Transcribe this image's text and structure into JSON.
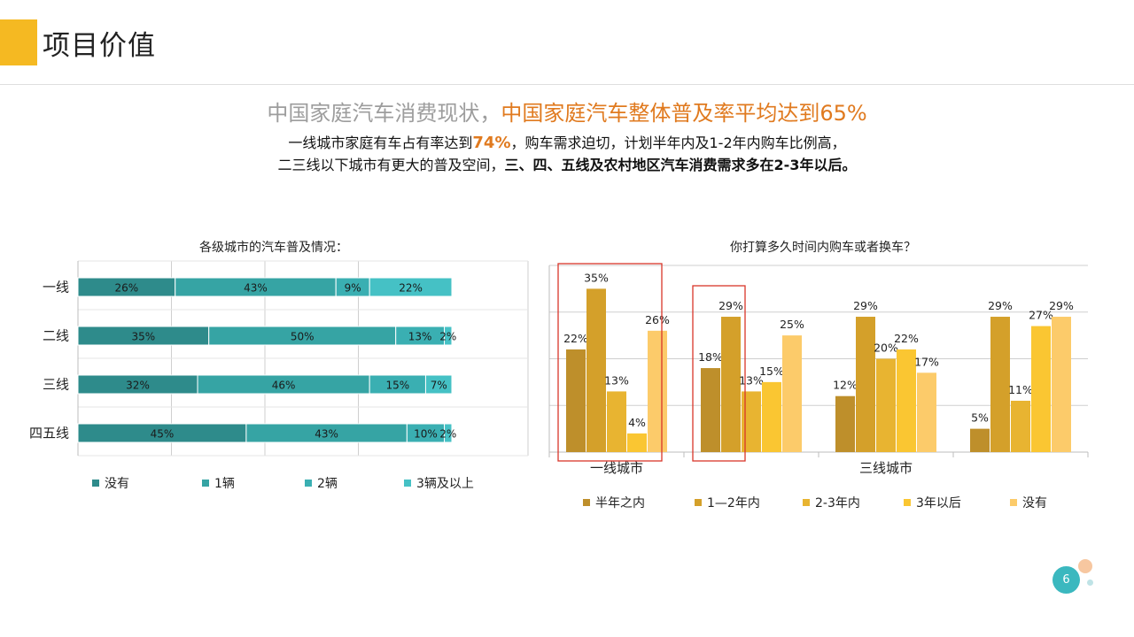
{
  "page": {
    "title": "项目价值",
    "headline_gray": "中国家庭汽车消费现状，",
    "headline_orange": "中国家庭汽车整体普及率平均达到65%",
    "sub1_a": "一线城市家庭有车占有率达到",
    "sub1_num": "74%",
    "sub1_b": "，购车需求迫切，计划半年内及1-2年内购车比例高，",
    "sub2_a": "二三线以下城市有更大的普及空间，",
    "sub2_b": "三、四、五线及农村地区汽车消费需求多在2-3年以后。",
    "page_number": "6"
  },
  "chart_data": [
    {
      "type": "bar",
      "orientation": "horizontal",
      "stacked": true,
      "title": "各级城市的汽车普及情况：",
      "categories": [
        "一线",
        "二线",
        "三线",
        "四五线"
      ],
      "series": [
        {
          "name": "没有",
          "values": [
            26,
            35,
            32,
            45
          ],
          "color": "#2E8B8B"
        },
        {
          "name": "1辆",
          "values": [
            43,
            50,
            46,
            43
          ],
          "color": "#36A4A4"
        },
        {
          "name": "2辆",
          "values": [
            9,
            13,
            15,
            10
          ],
          "color": "#3AAFB2"
        },
        {
          "name": "3辆及以上",
          "values": [
            22,
            2,
            7,
            2
          ],
          "color": "#45C1C5"
        }
      ],
      "data_labels": [
        [
          "26%",
          "35%",
          "32%",
          "45%"
        ],
        [
          "43%",
          "50%",
          "46%",
          "43%"
        ],
        [
          "9%",
          "13%",
          "15%",
          "10%"
        ],
        [
          "22%",
          "2%",
          "7%",
          "2%"
        ]
      ],
      "legend_position": "bottom",
      "grid": true
    },
    {
      "type": "bar",
      "title": "你打算多久时间内购车或者换车？",
      "categories": [
        "一线城市",
        "",
        "三线城市",
        ""
      ],
      "series": [
        {
          "name": "半年之内",
          "values": [
            22,
            18,
            12,
            5
          ],
          "color": "#BE8F2B"
        },
        {
          "name": "1—2年内",
          "values": [
            35,
            29,
            29,
            29
          ],
          "color": "#D4A02A"
        },
        {
          "name": "2-3年内",
          "values": [
            13,
            13,
            20,
            11
          ],
          "color": "#E8B431"
        },
        {
          "name": "3年以后",
          "values": [
            4,
            15,
            22,
            27
          ],
          "color": "#FAC632"
        },
        {
          "name": "没有",
          "values": [
            26,
            25,
            17,
            29
          ],
          "color": "#FCCB6A"
        }
      ],
      "legend_position": "bottom",
      "grid": true,
      "highlighted_groups": [
        0,
        1
      ]
    }
  ]
}
